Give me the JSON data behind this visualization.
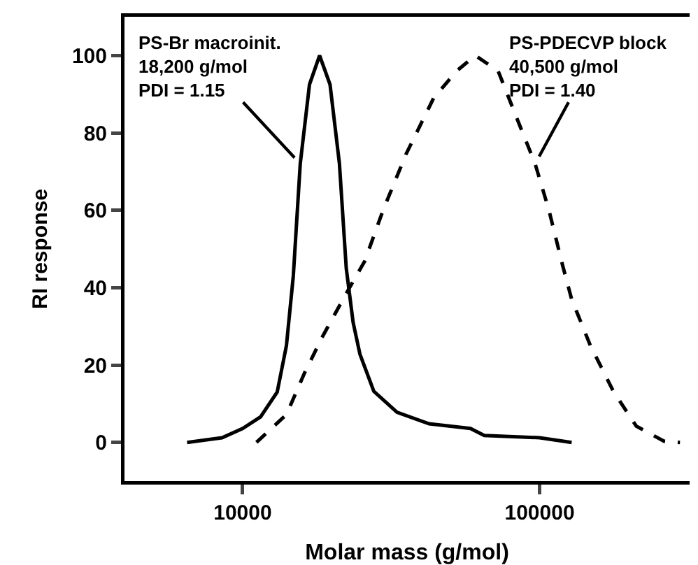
{
  "chart_data": {
    "type": "line",
    "xlabel": "Molar mass (g/mol)",
    "ylabel": "RI response",
    "log": "x",
    "xlim": [
      4000,
      320000
    ],
    "xticks": [
      10000,
      100000
    ],
    "ylim": [
      -10,
      110
    ],
    "yticks": [
      0,
      20,
      40,
      60,
      80,
      100
    ],
    "grid": false,
    "marker": "none",
    "series": [
      {
        "color": "#000000",
        "line_style": "solid",
        "x": [
          6500,
          8520,
          10000,
          11490,
          13070,
          14040,
          14810,
          15630,
          16790,
          18160,
          19690,
          21180,
          22330,
          23550,
          24830,
          27650,
          33100,
          42450,
          58500,
          65100,
          100000,
          128200
        ],
        "values": [
          0,
          1.2,
          3.6,
          6.6,
          13,
          25,
          43,
          72,
          92.5,
          100,
          92.5,
          72,
          45,
          31,
          22.8,
          13.2,
          7.8,
          4.8,
          3.6,
          1.8,
          1.2,
          0
        ]
      },
      {
        "color": "#000000",
        "line_style": "dashed",
        "x": [
          11130,
          14040,
          16170,
          18650,
          22330,
          25750,
          29710,
          35500,
          43970,
          52600,
          60700,
          72500,
          83600,
          96600,
          107500,
          119600,
          128200,
          148300,
          177200,
          211600,
          262400,
          297000
        ],
        "values": [
          0,
          7.2,
          18,
          27.6,
          38.5,
          46.8,
          60,
          74.5,
          89,
          96,
          100,
          96,
          84,
          72,
          60,
          45.7,
          37,
          25,
          13.2,
          4.2,
          0.3,
          0
        ]
      }
    ],
    "annotations": [
      {
        "text": "PS-Br macroinit.\n18,200 g/mol\nPDI = 1.15",
        "x": 15630,
        "y": 72
      },
      {
        "text": "PS-PDECVP block\n40,500 g/mol\nPDI = 1.40",
        "x": 96600,
        "y": 72
      }
    ]
  }
}
